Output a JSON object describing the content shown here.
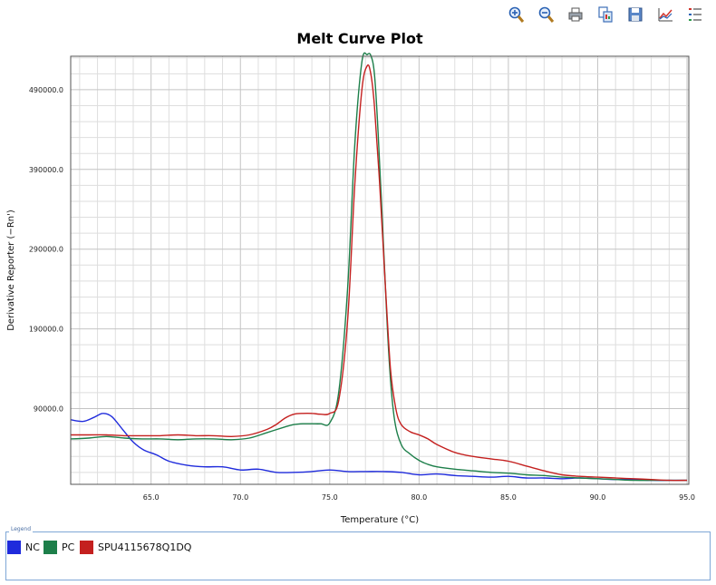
{
  "toolbar": {
    "icons": [
      "zoom-in-icon",
      "zoom-out-icon",
      "print-icon",
      "copy-icon",
      "save-icon",
      "chart-settings-icon",
      "legend-icon"
    ]
  },
  "legend": {
    "caption": "Legend",
    "items": [
      {
        "label": "NC",
        "color": "#1f2bdc"
      },
      {
        "label": "PC",
        "color": "#1d7f4a"
      },
      {
        "label": "SPU4115678Q1DQ",
        "color": "#c4201f"
      }
    ]
  },
  "chart_data": {
    "type": "line",
    "title": "Melt Curve Plot",
    "xlabel": "Temperature (°C)",
    "ylabel": "Derivative Reporter (−Rn')",
    "xlim": [
      60.5,
      95.1
    ],
    "ylim": [
      -5000,
      532000
    ],
    "x_ticks": [
      65,
      70,
      75,
      80,
      85,
      90,
      95
    ],
    "x_tick_labels": [
      "65.0",
      "70.0",
      "75.0",
      "80.0",
      "85.0",
      "90.0",
      "95.0"
    ],
    "y_ticks": [
      90000,
      190000,
      290000,
      390000,
      490000
    ],
    "y_tick_labels": [
      "90000.0",
      "190000.0",
      "290000.0",
      "390000.0",
      "490000.0"
    ],
    "grid": true,
    "legend_position": "bottom",
    "series": [
      {
        "name": "NC",
        "color": "#1f2bdc",
        "x": [
          60.5,
          61.2,
          61.8,
          62.3,
          62.8,
          63.4,
          64.0,
          64.6,
          65.3,
          66.0,
          67.0,
          68.0,
          69.0,
          70.0,
          71.0,
          72.0,
          73.0,
          74.0,
          75.0,
          76.0,
          77.0,
          78.0,
          79.0,
          80.0,
          81.0,
          82.0,
          83.0,
          84.0,
          85.0,
          86.0,
          87.0,
          88.0,
          89.0,
          90.0,
          91.0,
          92.0,
          93.0,
          94.0,
          95.0
        ],
        "y": [
          76000,
          74000,
          79000,
          84000,
          80000,
          64000,
          48000,
          38000,
          32000,
          24000,
          19000,
          17000,
          17000,
          13000,
          14000,
          10000,
          10000,
          11000,
          13000,
          11000,
          11000,
          11000,
          10000,
          7000,
          8000,
          6000,
          5000,
          4000,
          5000,
          3000,
          3000,
          2000,
          3000,
          2000,
          1000,
          1000,
          0,
          0,
          0
        ]
      },
      {
        "name": "PC",
        "color": "#1d7f4a",
        "x": [
          60.5,
          61.5,
          62.5,
          63.5,
          64.5,
          65.5,
          66.5,
          67.5,
          68.5,
          69.5,
          70.5,
          71.5,
          72.5,
          73.0,
          73.5,
          74.0,
          74.5,
          75.0,
          75.5,
          76.0,
          76.4,
          76.8,
          77.1,
          77.3,
          77.5,
          77.7,
          78.0,
          78.3,
          78.6,
          79.0,
          79.5,
          80.0,
          80.5,
          81.0,
          82.0,
          83.0,
          84.0,
          85.0,
          86.0,
          87.0,
          88.0,
          89.0,
          90.0,
          91.0,
          92.0,
          93.0,
          94.0,
          95.0
        ],
        "y": [
          52000,
          53000,
          55000,
          53000,
          52000,
          52000,
          51000,
          52000,
          52000,
          51000,
          53000,
          60000,
          67000,
          70000,
          71000,
          71000,
          71000,
          72000,
          110000,
          240000,
          420000,
          525000,
          534000,
          533000,
          510000,
          440000,
          300000,
          160000,
          80000,
          45000,
          33000,
          25000,
          20000,
          17000,
          14000,
          12000,
          10000,
          9000,
          7000,
          6000,
          4000,
          3000,
          2000,
          1000,
          0,
          0,
          0,
          0
        ]
      },
      {
        "name": "SPU4115678Q1DQ",
        "color": "#c4201f",
        "x": [
          60.5,
          61.5,
          62.5,
          63.5,
          64.5,
          65.5,
          66.5,
          67.5,
          68.5,
          69.5,
          70.5,
          71.5,
          72.0,
          72.5,
          73.0,
          73.5,
          74.0,
          74.5,
          75.0,
          75.5,
          76.0,
          76.4,
          76.8,
          77.1,
          77.3,
          77.5,
          77.8,
          78.1,
          78.4,
          78.7,
          79.0,
          79.5,
          80.0,
          80.5,
          81.0,
          82.0,
          83.0,
          84.0,
          85.0,
          86.0,
          87.0,
          88.0,
          89.0,
          90.0,
          91.0,
          92.0,
          93.0,
          94.0,
          95.0
        ],
        "y": [
          57000,
          57000,
          57000,
          56000,
          56000,
          56000,
          57000,
          56000,
          56000,
          55000,
          57000,
          64000,
          70000,
          78000,
          83000,
          84000,
          84000,
          83000,
          84000,
          100000,
          200000,
          370000,
          490000,
          520000,
          510000,
          470000,
          370000,
          250000,
          140000,
          90000,
          70000,
          61000,
          57000,
          52000,
          45000,
          35000,
          30000,
          27000,
          24000,
          18000,
          12000,
          7000,
          5000,
          4000,
          3000,
          2000,
          1000,
          0,
          0
        ]
      }
    ]
  }
}
